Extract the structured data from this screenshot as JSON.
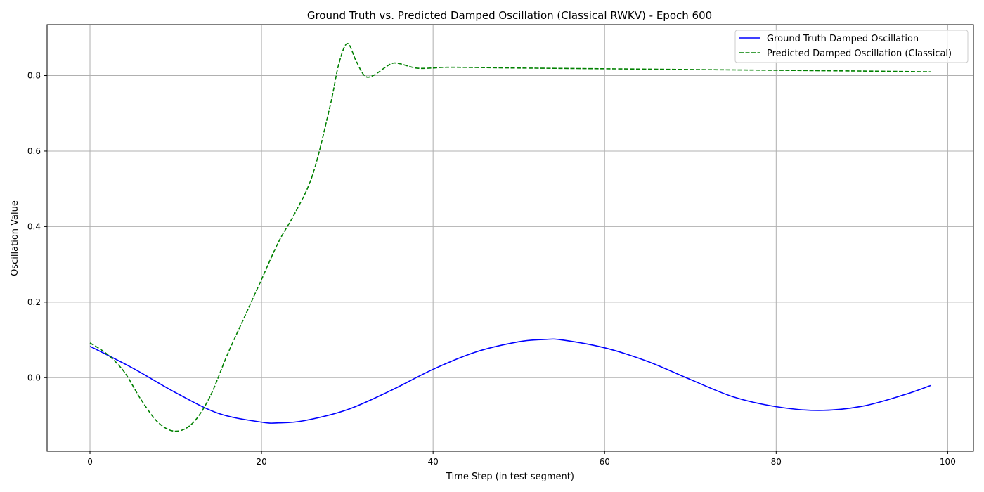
{
  "chart_data": {
    "type": "line",
    "title": "Ground Truth vs. Predicted Damped Oscillation (Classical RWKV) - Epoch 600",
    "xlabel": "Time Step (in test segment)",
    "ylabel": "Oscillation Value",
    "xlim": [
      -5,
      103
    ],
    "ylim": [
      -0.195,
      0.935
    ],
    "x_ticks": [
      0,
      20,
      40,
      60,
      80,
      100
    ],
    "y_ticks": [
      0.0,
      0.2,
      0.4,
      0.6,
      0.8
    ],
    "x_tick_labels": [
      "0",
      "20",
      "40",
      "60",
      "80",
      "100"
    ],
    "y_tick_labels": [
      "0.0",
      "0.2",
      "0.4",
      "0.6",
      "0.8"
    ],
    "grid": true,
    "legend_position": "top-right",
    "series": [
      {
        "name": "Ground Truth Damped Oscillation",
        "color": "#0000ff",
        "style": "solid",
        "points": [
          [
            0,
            0.083
          ],
          [
            5,
            0.025
          ],
          [
            10,
            -0.04
          ],
          [
            15,
            -0.095
          ],
          [
            20,
            -0.118
          ],
          [
            22,
            -0.12
          ],
          [
            25,
            -0.114
          ],
          [
            30,
            -0.085
          ],
          [
            35,
            -0.035
          ],
          [
            40,
            0.022
          ],
          [
            45,
            0.068
          ],
          [
            50,
            0.095
          ],
          [
            53,
            0.101
          ],
          [
            55,
            0.1
          ],
          [
            60,
            0.079
          ],
          [
            65,
            0.043
          ],
          [
            70,
            -0.005
          ],
          [
            75,
            -0.051
          ],
          [
            80,
            -0.077
          ],
          [
            85,
            -0.087
          ],
          [
            90,
            -0.076
          ],
          [
            95,
            -0.045
          ],
          [
            98,
            -0.021
          ]
        ]
      },
      {
        "name": "Predicted Damped Oscillation (Classical)",
        "color": "#008000",
        "style": "dashed",
        "points": [
          [
            0,
            0.092
          ],
          [
            2,
            0.062
          ],
          [
            4,
            0.015
          ],
          [
            6,
            -0.06
          ],
          [
            8,
            -0.12
          ],
          [
            10,
            -0.142
          ],
          [
            12,
            -0.12
          ],
          [
            14,
            -0.05
          ],
          [
            16,
            0.06
          ],
          [
            18,
            0.16
          ],
          [
            20,
            0.26
          ],
          [
            22,
            0.36
          ],
          [
            24,
            0.44
          ],
          [
            26,
            0.54
          ],
          [
            28,
            0.72
          ],
          [
            29,
            0.83
          ],
          [
            30,
            0.885
          ],
          [
            31,
            0.84
          ],
          [
            32,
            0.8
          ],
          [
            33,
            0.8
          ],
          [
            35,
            0.83
          ],
          [
            36,
            0.832
          ],
          [
            38,
            0.82
          ],
          [
            40,
            0.82
          ],
          [
            42,
            0.822
          ],
          [
            50,
            0.82
          ],
          [
            60,
            0.818
          ],
          [
            70,
            0.816
          ],
          [
            80,
            0.814
          ],
          [
            90,
            0.812
          ],
          [
            98,
            0.81
          ]
        ]
      }
    ]
  }
}
